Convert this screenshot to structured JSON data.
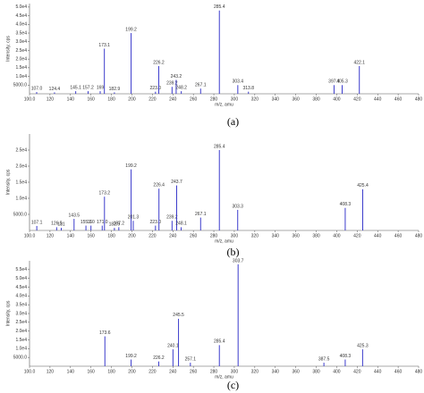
{
  "chart_data": [
    {
      "type": "bar",
      "caption": "(a)",
      "xlabel": "m/z, amu",
      "ylabel": "Intensity, cps",
      "color": "#3c3ccc",
      "xlim": [
        100,
        480
      ],
      "xticks": [
        {
          "value": 100,
          "label": "100.0"
        },
        120,
        140,
        160,
        180,
        200,
        220,
        240,
        260,
        280,
        300,
        320,
        340,
        360,
        380,
        400,
        420,
        440,
        460,
        480
      ],
      "ylim": [
        0,
        52000
      ],
      "yticks": [
        {
          "value": 5000,
          "label": "5000.0"
        },
        {
          "value": 10000,
          "label": "1.0e4"
        },
        {
          "value": 15000,
          "label": "1.5e4"
        },
        {
          "value": 20000,
          "label": "2.0e4"
        },
        {
          "value": 25000,
          "label": "2.5e4"
        },
        {
          "value": 30000,
          "label": "3.0e4"
        },
        {
          "value": 35000,
          "label": "3.5e4"
        },
        {
          "value": 40000,
          "label": "4.0e4"
        },
        {
          "value": 45000,
          "label": "4.5e4"
        },
        {
          "value": 50000,
          "label": "5.0e4"
        }
      ],
      "x": [
        107.0,
        124.4,
        145.1,
        157.2,
        169,
        173.1,
        182.9,
        199.2,
        223.0,
        226.2,
        239.2,
        243.2,
        248.2,
        267.1,
        285.4,
        303.4,
        313.8,
        397.4,
        405.3,
        422.1
      ],
      "x_labels": [
        "107.0",
        "124.4",
        "145.1",
        "157.2",
        "169",
        "173.1",
        "182.9",
        "199.2",
        "223.0",
        "226.2",
        "239.2",
        "243.2",
        "248.2",
        "267.1",
        "285.4",
        "303.4",
        "313.8",
        "397.4",
        "405.3",
        "422.1"
      ],
      "values": [
        1000,
        800,
        1500,
        1500,
        1500,
        26000,
        800,
        35000,
        1200,
        16000,
        4000,
        8000,
        1500,
        3000,
        48000,
        5000,
        1200,
        5000,
        5000,
        16000
      ]
    },
    {
      "type": "bar",
      "caption": "(b)",
      "xlabel": "m/z, amu",
      "ylabel": "Intensity, cps",
      "color": "#3c3ccc",
      "xlim": [
        100,
        480
      ],
      "xticks": [
        {
          "value": 100,
          "label": "100.0"
        },
        120,
        140,
        160,
        180,
        200,
        220,
        240,
        260,
        280,
        300,
        320,
        340,
        360,
        380,
        400,
        420,
        440,
        460,
        480
      ],
      "ylim": [
        0,
        30000
      ],
      "yticks": [
        {
          "value": 5000,
          "label": "5000.0"
        },
        {
          "value": 10000,
          "label": "1.0e4"
        },
        {
          "value": 15000,
          "label": "1.5e4"
        },
        {
          "value": 20000,
          "label": "2.0e4"
        },
        {
          "value": 25000,
          "label": "2.5e4"
        }
      ],
      "x": [
        107.1,
        126.5,
        131,
        143.5,
        155.1,
        160,
        171.0,
        173.2,
        182.9,
        187.2,
        199.2,
        201.3,
        223.0,
        226.4,
        239.2,
        243.7,
        248.1,
        267.1,
        285.4,
        303.3,
        408.3,
        425.4
      ],
      "x_labels": [
        "107.1",
        "126.5",
        "131",
        "143.5",
        "155.1",
        "160",
        "171.0",
        "173.2",
        "182.9",
        "187.2",
        "199.2",
        "201.3",
        "223.0",
        "226.4",
        "239.2",
        "243.7",
        "248.1",
        "267.1",
        "285.4",
        "303.3",
        "408.3",
        "425.4"
      ],
      "values": [
        1400,
        1000,
        800,
        3600,
        1500,
        1500,
        1500,
        10500,
        800,
        1000,
        19000,
        3000,
        1500,
        13000,
        3000,
        14000,
        1000,
        4000,
        25000,
        6400,
        7000,
        12800
      ]
    },
    {
      "type": "bar",
      "caption": "(c)",
      "xlabel": "m/z, amu",
      "ylabel": "Intensity, cps",
      "color": "#3c3ccc",
      "xlim": [
        100,
        480
      ],
      "xticks": [
        {
          "value": 100,
          "label": "100.0"
        },
        120,
        140,
        160,
        180,
        200,
        220,
        240,
        260,
        280,
        300,
        320,
        340,
        360,
        380,
        400,
        420,
        440,
        460,
        480
      ],
      "ylim": [
        0,
        60000
      ],
      "yticks": [
        {
          "value": 5000,
          "label": "5000.0"
        },
        {
          "value": 10000,
          "label": "1.0e4"
        },
        {
          "value": 15000,
          "label": "1.5e4"
        },
        {
          "value": 20000,
          "label": "2.0e4"
        },
        {
          "value": 25000,
          "label": "2.5e4"
        },
        {
          "value": 30000,
          "label": "3.0e4"
        },
        {
          "value": 35000,
          "label": "3.5e4"
        },
        {
          "value": 40000,
          "label": "4.0e4"
        },
        {
          "value": 45000,
          "label": "4.5e4"
        },
        {
          "value": 50000,
          "label": "5.0e4"
        },
        {
          "value": 55000,
          "label": "5.5e4"
        }
      ],
      "x": [
        173.6,
        199.2,
        226.2,
        240.1,
        245.5,
        257.1,
        285.4,
        303.7,
        387.5,
        408.3,
        425.3
      ],
      "x_labels": [
        "173.6",
        "199.2",
        "226.2",
        "240.1",
        "245.5",
        "257.1",
        "285.4",
        "303.7",
        "387.5",
        "408.3",
        "425.3"
      ],
      "values": [
        17000,
        3800,
        2700,
        9600,
        27000,
        2000,
        12000,
        58000,
        2000,
        3800,
        9600
      ]
    }
  ]
}
